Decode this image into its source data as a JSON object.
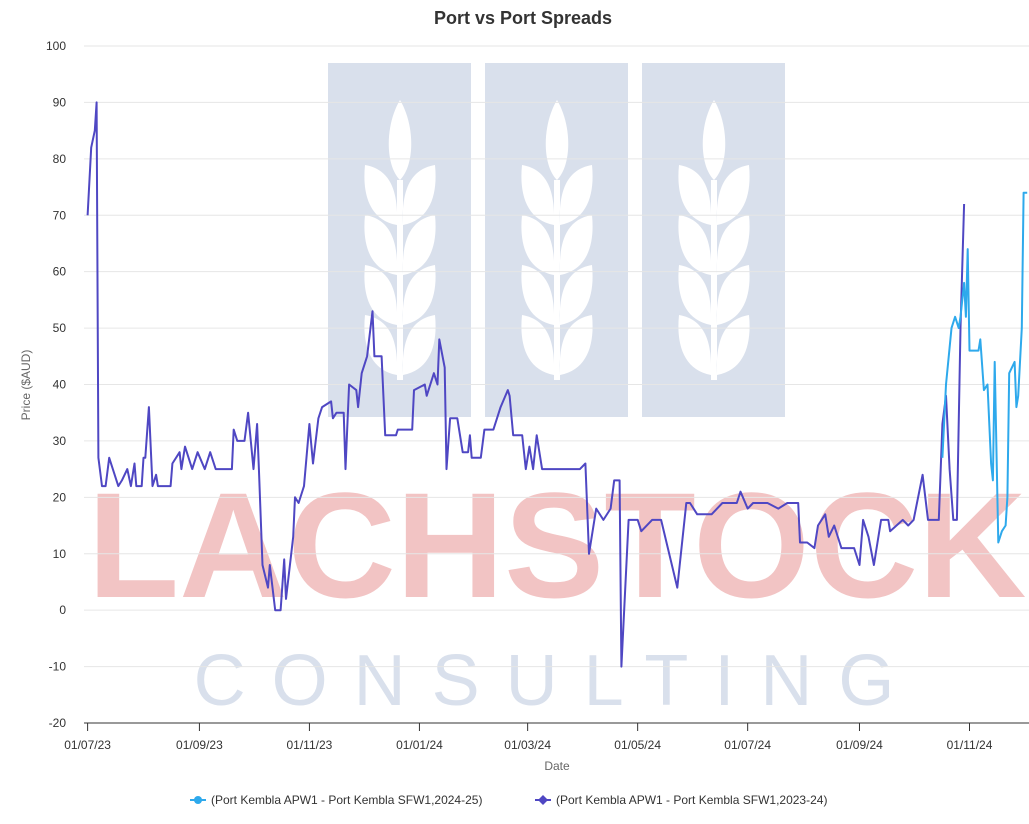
{
  "watermark": {
    "title": "LACHSTOCK",
    "subtitle": "CONSULTING"
  },
  "chart_data": {
    "type": "line",
    "title": "Port vs Port Spreads",
    "x_label": "Date",
    "y_label": "Price ($AUD)",
    "xlim": [
      "2023-06-29",
      "2024-12-04"
    ],
    "ylim": [
      -20,
      100
    ],
    "yticks": [
      -20,
      -10,
      0,
      10,
      20,
      30,
      40,
      50,
      60,
      70,
      80,
      90,
      100
    ],
    "xticks": [
      {
        "value": "2023-07-01",
        "label": "01/07/23"
      },
      {
        "value": "2023-09-01",
        "label": "01/09/23"
      },
      {
        "value": "2023-11-01",
        "label": "01/11/23"
      },
      {
        "value": "2024-01-01",
        "label": "01/01/24"
      },
      {
        "value": "2024-03-01",
        "label": "01/03/24"
      },
      {
        "value": "2024-05-01",
        "label": "01/05/24"
      },
      {
        "value": "2024-07-01",
        "label": "01/07/24"
      },
      {
        "value": "2024-09-01",
        "label": "01/09/24"
      },
      {
        "value": "2024-11-01",
        "label": "01/11/24"
      }
    ],
    "grid": true,
    "legend": "bottom",
    "series": [
      {
        "name": "(Port Kembla APW1 - Port Kembla SFW1,2024-25)",
        "color": "#2ea9ec",
        "marker": "circle",
        "x": [
          "2024-10-17",
          "2024-10-19",
          "2024-10-22",
          "2024-10-24",
          "2024-10-26",
          "2024-10-27",
          "2024-10-29",
          "2024-10-30",
          "2024-10-31",
          "2024-11-01",
          "2024-11-06",
          "2024-11-07",
          "2024-11-09",
          "2024-11-11",
          "2024-11-13",
          "2024-11-14",
          "2024-11-15",
          "2024-11-17",
          "2024-11-19",
          "2024-11-21",
          "2024-11-22",
          "2024-11-23",
          "2024-11-26",
          "2024-11-27",
          "2024-11-28",
          "2024-11-30",
          "2024-12-01",
          "2024-12-03"
        ],
        "values": [
          27,
          40,
          50,
          52,
          50,
          52,
          58,
          52,
          64,
          46,
          46,
          48,
          39,
          40,
          26,
          23,
          44,
          12,
          14,
          15,
          20,
          42,
          44,
          36,
          38,
          50,
          74,
          74
        ]
      },
      {
        "name": "(Port Kembla APW1 - Port Kembla SFW1,2023-24)",
        "color": "#4f47c3",
        "marker": "diamond",
        "x": [
          "2023-07-01",
          "2023-07-03",
          "2023-07-05",
          "2023-07-06",
          "2023-07-07",
          "2023-07-09",
          "2023-07-11",
          "2023-07-13",
          "2023-07-18",
          "2023-07-20",
          "2023-07-23",
          "2023-07-25",
          "2023-07-27",
          "2023-07-28",
          "2023-07-31",
          "2023-08-01",
          "2023-08-02",
          "2023-08-04",
          "2023-08-06",
          "2023-08-08",
          "2023-08-09",
          "2023-08-16",
          "2023-08-17",
          "2023-08-21",
          "2023-08-22",
          "2023-08-24",
          "2023-08-28",
          "2023-08-31",
          "2023-09-04",
          "2023-09-07",
          "2023-09-10",
          "2023-09-19",
          "2023-09-20",
          "2023-09-22",
          "2023-09-26",
          "2023-09-28",
          "2023-10-01",
          "2023-10-03",
          "2023-10-04",
          "2023-10-06",
          "2023-10-09",
          "2023-10-10",
          "2023-10-13",
          "2023-10-16",
          "2023-10-18",
          "2023-10-19",
          "2023-10-23",
          "2023-10-24",
          "2023-10-26",
          "2023-10-29",
          "2023-11-01",
          "2023-11-03",
          "2023-11-06",
          "2023-11-08",
          "2023-11-13",
          "2023-11-14",
          "2023-11-16",
          "2023-11-20",
          "2023-11-21",
          "2023-11-23",
          "2023-11-27",
          "2023-11-28",
          "2023-11-30",
          "2023-12-03",
          "2023-12-06",
          "2023-12-07",
          "2023-12-11",
          "2023-12-13",
          "2023-12-19",
          "2023-12-20",
          "2023-12-28",
          "2023-12-29",
          "2024-01-04",
          "2024-01-05",
          "2024-01-09",
          "2024-01-11",
          "2024-01-12",
          "2024-01-15",
          "2024-01-16",
          "2024-01-18",
          "2024-01-22",
          "2024-01-25",
          "2024-01-28",
          "2024-01-29",
          "2024-01-30",
          "2024-02-04",
          "2024-02-06",
          "2024-02-11",
          "2024-02-15",
          "2024-02-19",
          "2024-02-20",
          "2024-02-22",
          "2024-02-27",
          "2024-02-29",
          "2024-03-02",
          "2024-03-04",
          "2024-03-06",
          "2024-03-09",
          "2024-03-14",
          "2024-03-30",
          "2024-04-02",
          "2024-04-04",
          "2024-04-08",
          "2024-04-12",
          "2024-04-16",
          "2024-04-18",
          "2024-04-21",
          "2024-04-22",
          "2024-04-26",
          "2024-05-01",
          "2024-05-03",
          "2024-05-09",
          "2024-05-14",
          "2024-05-23",
          "2024-05-28",
          "2024-05-30",
          "2024-06-03",
          "2024-06-11",
          "2024-06-17",
          "2024-06-25",
          "2024-06-27",
          "2024-07-01",
          "2024-07-04",
          "2024-07-12",
          "2024-07-18",
          "2024-07-23",
          "2024-07-29",
          "2024-07-30",
          "2024-08-03",
          "2024-08-07",
          "2024-08-09",
          "2024-08-13",
          "2024-08-15",
          "2024-08-18",
          "2024-08-22",
          "2024-08-29",
          "2024-09-01",
          "2024-09-03",
          "2024-09-06",
          "2024-09-09",
          "2024-09-13",
          "2024-09-17",
          "2024-09-18",
          "2024-09-25",
          "2024-09-28",
          "2024-10-01",
          "2024-10-06",
          "2024-10-09",
          "2024-10-15",
          "2024-10-17",
          "2024-10-19",
          "2024-10-21",
          "2024-10-23",
          "2024-10-25",
          "2024-10-27",
          "2024-10-29"
        ],
        "values": [
          70,
          82,
          85,
          90,
          27,
          22,
          22,
          27,
          22,
          23,
          25,
          22,
          26,
          22,
          22,
          27,
          27,
          36,
          22,
          24,
          22,
          22,
          26,
          28,
          25,
          29,
          25,
          28,
          25,
          28,
          25,
          25,
          32,
          30,
          30,
          35,
          25,
          33,
          25,
          8,
          4,
          8,
          0,
          0,
          9,
          2,
          13,
          20,
          19,
          22,
          33,
          26,
          34,
          36,
          37,
          34,
          35,
          35,
          25,
          40,
          39,
          36,
          42,
          45,
          53,
          45,
          45,
          31,
          31,
          32,
          32,
          39,
          40,
          38,
          42,
          40,
          48,
          43,
          25,
          34,
          34,
          28,
          28,
          31,
          27,
          27,
          32,
          32,
          36,
          39,
          38,
          31,
          31,
          25,
          29,
          25,
          31,
          25,
          25,
          25,
          26,
          10,
          18,
          16,
          18,
          23,
          23,
          -10,
          16,
          16,
          14,
          16,
          16,
          4,
          19,
          19,
          17,
          17,
          19,
          19,
          21,
          18,
          19,
          19,
          18,
          19,
          19,
          12,
          12,
          11,
          15,
          17,
          13,
          15,
          11,
          11,
          8,
          16,
          13,
          8,
          16,
          16,
          14,
          16,
          15,
          16,
          24,
          16,
          16,
          33,
          38,
          25,
          16,
          16,
          50,
          72
        ]
      }
    ]
  }
}
